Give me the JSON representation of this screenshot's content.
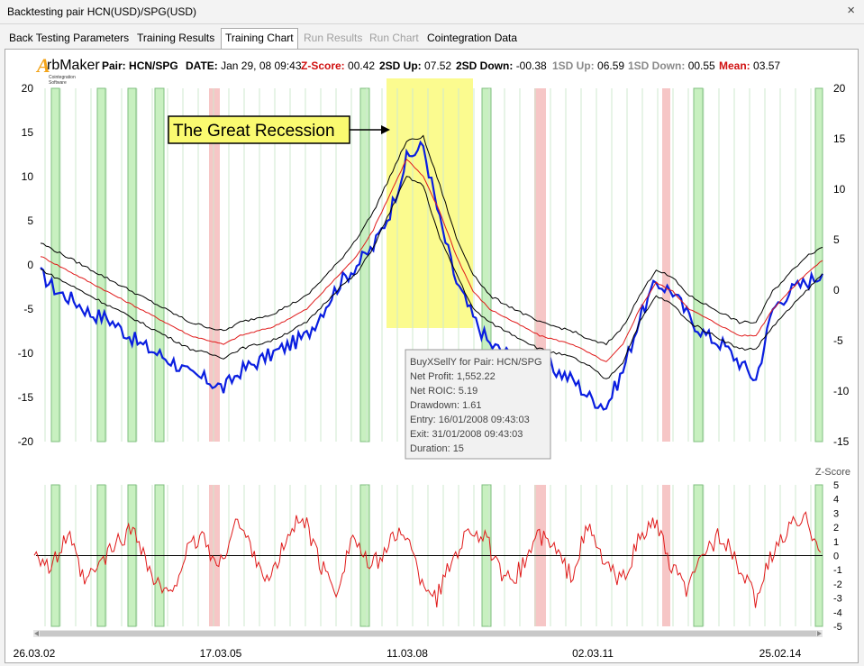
{
  "window": {
    "title": "Backtesting pair HCN(USD)/SPG(USD)",
    "close_glyph": "×"
  },
  "tabs": [
    {
      "label": "Back Testing Parameters",
      "state": "normal"
    },
    {
      "label": "Training Results",
      "state": "normal"
    },
    {
      "label": "Training Chart",
      "state": "active"
    },
    {
      "label": "Run Results",
      "state": "disabled"
    },
    {
      "label": "Run Chart",
      "state": "disabled"
    },
    {
      "label": "Cointegration Data",
      "state": "normal"
    }
  ],
  "logo": {
    "text": "rbMaker",
    "letter": "A",
    "sub": "Cointegration Software"
  },
  "header": {
    "pair_label": "Pair:",
    "pair_value": "HCN/SPG",
    "date_label": "DATE:",
    "date_value": "Jan 29, 08 09:43",
    "zscore_label": "Z-Score:",
    "zscore_value": "00.42",
    "sd2up_label": "2SD Up:",
    "sd2up_value": "07.52",
    "sd2down_label": "2SD Down:",
    "sd2down_value": "-00.38",
    "sd1up_label": "1SD Up:",
    "sd1up_value": "06.59",
    "sd1down_label": "1SD Down:",
    "sd1down_value": "00.55",
    "mean_label": "Mean:",
    "mean_value": "03.57"
  },
  "annotation": {
    "text": "The Great Recession"
  },
  "tooltip": {
    "lines": [
      "BuyXSellY for Pair: HCN/SPG",
      "Net Profit: 1,552.22",
      "Net ROIC: 5.19",
      "Drawdown: 1.61",
      "Entry: 16/01/2008 09:43:03",
      "Exit: 31/01/2008 09:43:03",
      "Duration: 15"
    ]
  },
  "colors": {
    "spread": "#0a1ee0",
    "mean": "#e01a1a",
    "bands": "#000000",
    "zscore": "#e01a1a",
    "win_band": "#c8f0c0",
    "loss_band": "#f6c6c6",
    "highlight": "#fafa70"
  },
  "chart_data": [
    {
      "type": "line",
      "title": "",
      "y_left_ticks": [
        "20",
        "15",
        "10",
        "5",
        "0",
        "-5",
        "-10",
        "-15",
        "-20"
      ],
      "y_right_ticks": [
        "20",
        "15",
        "10",
        "5",
        "0",
        "-5",
        "-10",
        "-15"
      ],
      "ylim_left": [
        -20,
        20
      ],
      "ylim_right": [
        -15,
        20
      ],
      "series": [
        {
          "values": [
            -1,
            -3,
            -4,
            -5.5,
            -6,
            -7.5,
            -9,
            -10,
            -11,
            -12.5,
            -13,
            -14,
            -12,
            -11,
            -10,
            -9,
            -8,
            -5,
            -2,
            0,
            2,
            6,
            12,
            13.5,
            5,
            -2,
            -6,
            -9,
            -10,
            -11,
            -11,
            -12,
            -13,
            -15,
            -16,
            -12,
            -6,
            -2,
            -3,
            -6,
            -8,
            -9,
            -11,
            -13,
            -5,
            -3,
            -2,
            -1
          ]
        },
        {
          "values": [
            1,
            0,
            -1,
            -2,
            -3,
            -4,
            -5,
            -6,
            -7,
            -8,
            -8.5,
            -9,
            -8,
            -7.5,
            -7,
            -6,
            -5,
            -3,
            -1,
            1,
            4,
            8,
            12,
            10,
            6,
            1,
            -3,
            -5,
            -6,
            -7,
            -8,
            -8.5,
            -9,
            -10,
            -11,
            -9,
            -5,
            -2,
            -3,
            -5,
            -6,
            -7,
            -8,
            -8,
            -5,
            -3,
            -1,
            0.5
          ]
        },
        {
          "values": [
            2.5,
            1.5,
            0.5,
            -0.5,
            -1.5,
            -2.5,
            -3.5,
            -4.5,
            -5.5,
            -6.5,
            -7,
            -7.5,
            -6.5,
            -6,
            -5.5,
            -4.5,
            -3.5,
            -1.5,
            0.5,
            3,
            6,
            10,
            14,
            14.5,
            9,
            3,
            -1,
            -3.5,
            -4.5,
            -5.5,
            -6.5,
            -7,
            -7.5,
            -8.5,
            -9,
            -7,
            -3.5,
            -0.5,
            -1.5,
            -3.5,
            -4.5,
            -5.5,
            -6.5,
            -6.5,
            -3,
            -1,
            1,
            2
          ]
        },
        {
          "values": [
            -0.5,
            -1.5,
            -2.5,
            -3.5,
            -4.5,
            -5.5,
            -6.5,
            -7.5,
            -8.5,
            -9.5,
            -10,
            -10.5,
            -9.5,
            -9,
            -8.5,
            -7.5,
            -6.5,
            -4.5,
            -2.5,
            -1,
            2,
            6,
            10,
            9,
            3,
            -1,
            -5,
            -6.5,
            -7.5,
            -8.5,
            -9.5,
            -10,
            -10.5,
            -11.5,
            -13,
            -11,
            -6.5,
            -3.5,
            -4.5,
            -6.5,
            -7.5,
            -8.5,
            -9.5,
            -9.5,
            -7,
            -5,
            -3,
            -1
          ]
        }
      ]
    },
    {
      "type": "line",
      "title": "",
      "ylabel": "Z-Score",
      "y_ticks": [
        "5",
        "4",
        "3",
        "2",
        "1",
        "0",
        "-1",
        "-2",
        "-3",
        "-4",
        "-5"
      ],
      "ylim": [
        -5,
        5
      ],
      "x_tick_labels": [
        "26.03.02",
        "17.03.05",
        "11.03.08",
        "02.03.11",
        "25.02.14"
      ],
      "series": [
        {
          "values": [
            0.5,
            -1,
            1.5,
            -2,
            -0.5,
            1,
            2,
            -1.5,
            -3,
            0,
            1.5,
            -1,
            2.5,
            0.5,
            -2,
            1,
            3,
            -0.5,
            -2.5,
            1.5,
            -1,
            0.5,
            2,
            -1.5,
            -3,
            0,
            2,
            1,
            -2,
            -1,
            1.5,
            0.5,
            -1.5,
            2,
            -0.5,
            -2,
            1,
            2.5,
            -1,
            -2.5,
            0.5,
            1.5,
            -1,
            -3,
            0,
            2,
            2.5,
            0.5
          ]
        }
      ]
    }
  ]
}
